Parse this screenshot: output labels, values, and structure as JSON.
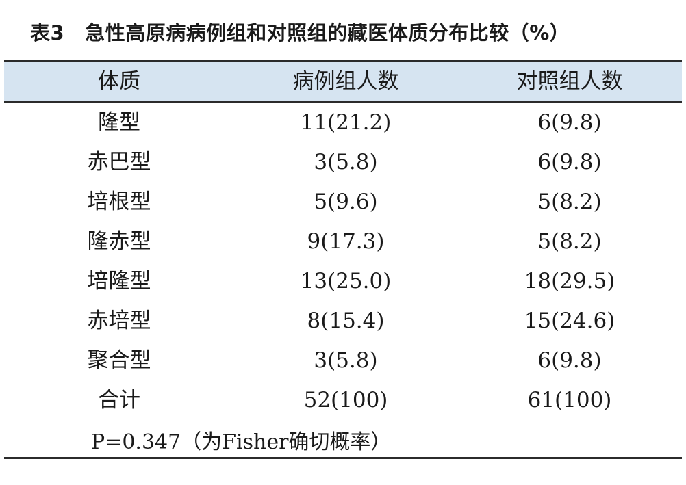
{
  "caption": {
    "label": "表3",
    "text": "急性高原病病例组和对照组的藏医体质分布比较（%）"
  },
  "table": {
    "headers": [
      "体质",
      "病例组人数",
      "对照组人数"
    ],
    "rows": [
      [
        "隆型",
        "11(21.2)",
        "6(9.8)"
      ],
      [
        "赤巴型",
        "3(5.8)",
        "6(9.8)"
      ],
      [
        "培根型",
        "5(9.6)",
        "5(8.2)"
      ],
      [
        "隆赤型",
        "9(17.3)",
        "5(8.2)"
      ],
      [
        "培隆型",
        "13(25.0)",
        "18(29.5)"
      ],
      [
        "赤培型",
        "8(15.4)",
        "15(24.6)"
      ],
      [
        "聚合型",
        "3(5.8)",
        "6(9.8)"
      ],
      [
        "合计",
        "52(100)",
        "61(100)"
      ]
    ],
    "note": "P=0.347（为Fisher确切概率）"
  },
  "colors": {
    "header_bg": "#d6e4f1",
    "rule": "#2b2b2b"
  }
}
